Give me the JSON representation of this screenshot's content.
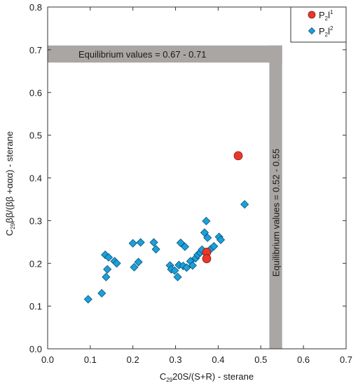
{
  "chart_data": {
    "type": "scatter",
    "title": "",
    "xlabel": {
      "prefix": "C",
      "sub": "29",
      "rest": "20S/(S+R) - sterane"
    },
    "ylabel": {
      "prefix": "C",
      "sub": "29",
      "rest": "ββ/(ββ +ααα) - sterane"
    },
    "xlim": [
      0.0,
      0.7
    ],
    "ylim": [
      0.0,
      0.8
    ],
    "xticks": [
      "0.0",
      "0.1",
      "0.2",
      "0.3",
      "0.4",
      "0.5",
      "0.6",
      "0.7"
    ],
    "yticks": [
      "0.0",
      "0.1",
      "0.2",
      "0.3",
      "0.4",
      "0.5",
      "0.6",
      "0.7",
      "0.8"
    ],
    "grid": false,
    "legend_position": "top-right",
    "equilibrium_bands": [
      {
        "axis": "y",
        "range": [
          0.67,
          0.71
        ],
        "label": "Equilibrium values = 0.67 - 0.71"
      },
      {
        "axis": "x",
        "range": [
          0.52,
          0.55
        ],
        "label": "Equilibrium values = 0.52 - 0.55"
      }
    ],
    "series": [
      {
        "name": {
          "main": "P",
          "sub": "2",
          "letter": "l",
          "sup": "1"
        },
        "marker": "circle",
        "color": "#e8382d",
        "x": [
          0.447,
          0.373,
          0.373
        ],
        "y": [
          0.452,
          0.226,
          0.211
        ]
      },
      {
        "name": {
          "main": "P",
          "sub": "2",
          "letter": "l",
          "sup": "2"
        },
        "marker": "diamond",
        "color": "#1aa0dc",
        "x": [
          0.095,
          0.127,
          0.135,
          0.137,
          0.14,
          0.143,
          0.157,
          0.162,
          0.2,
          0.203,
          0.213,
          0.218,
          0.249,
          0.254,
          0.287,
          0.29,
          0.298,
          0.305,
          0.308,
          0.312,
          0.318,
          0.322,
          0.326,
          0.335,
          0.34,
          0.347,
          0.352,
          0.358,
          0.362,
          0.368,
          0.372,
          0.375,
          0.382,
          0.39,
          0.402,
          0.406,
          0.462
        ],
        "y": [
          0.116,
          0.13,
          0.22,
          0.168,
          0.186,
          0.214,
          0.205,
          0.2,
          0.247,
          0.191,
          0.203,
          0.249,
          0.249,
          0.233,
          0.195,
          0.186,
          0.183,
          0.168,
          0.196,
          0.248,
          0.194,
          0.239,
          0.19,
          0.205,
          0.195,
          0.212,
          0.22,
          0.225,
          0.232,
          0.272,
          0.299,
          0.26,
          0.233,
          0.24,
          0.262,
          0.255,
          0.338
        ]
      }
    ]
  }
}
